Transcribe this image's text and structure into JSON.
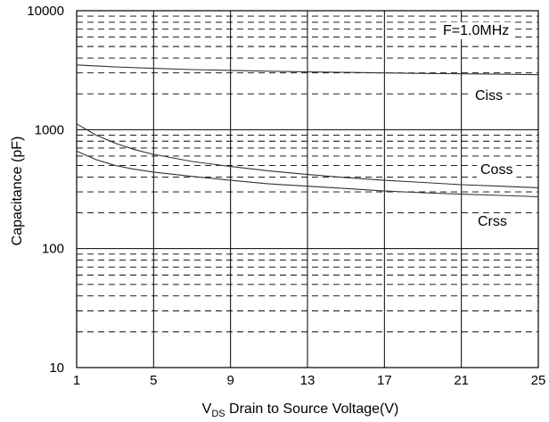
{
  "chart_data": {
    "type": "line",
    "xlabel_main": "V",
    "xlabel_sub": "DS",
    "xlabel_rest": " Drain to Source Voltage(V)",
    "ylabel": "Capacitance (pF)",
    "annotation": "F=1.0MHz",
    "y_scale": "log",
    "xlim": [
      1,
      25
    ],
    "ylim": [
      10,
      10000
    ],
    "x_ticks": [
      1,
      5,
      9,
      13,
      17,
      21,
      25
    ],
    "x_tick_labels": [
      "1",
      "5",
      "9",
      "13",
      "17",
      "21",
      "25"
    ],
    "y_ticks": [
      10,
      100,
      1000,
      10000
    ],
    "y_tick_labels": [
      "10",
      "100",
      "1000",
      "10000"
    ],
    "grid": true,
    "series": [
      {
        "name": "Ciss",
        "x": [
          1,
          3,
          5,
          7,
          9,
          11,
          13,
          15,
          17,
          19,
          21,
          23,
          25
        ],
        "y": [
          3500,
          3370,
          3280,
          3200,
          3150,
          3100,
          3060,
          3030,
          3000,
          2970,
          2950,
          2930,
          2900
        ]
      },
      {
        "name": "Coss",
        "x": [
          1,
          2,
          3,
          4,
          5,
          7,
          9,
          11,
          13,
          15,
          17,
          19,
          21,
          23,
          25
        ],
        "y": [
          1120,
          900,
          770,
          680,
          620,
          540,
          490,
          450,
          420,
          395,
          375,
          360,
          345,
          335,
          325
        ]
      },
      {
        "name": "Crss",
        "x": [
          1,
          2,
          3,
          4,
          5,
          7,
          9,
          11,
          13,
          15,
          17,
          19,
          21,
          23,
          25
        ],
        "y": [
          660,
          560,
          500,
          465,
          440,
          405,
          375,
          350,
          335,
          320,
          305,
          295,
          287,
          280,
          273
        ]
      }
    ]
  }
}
